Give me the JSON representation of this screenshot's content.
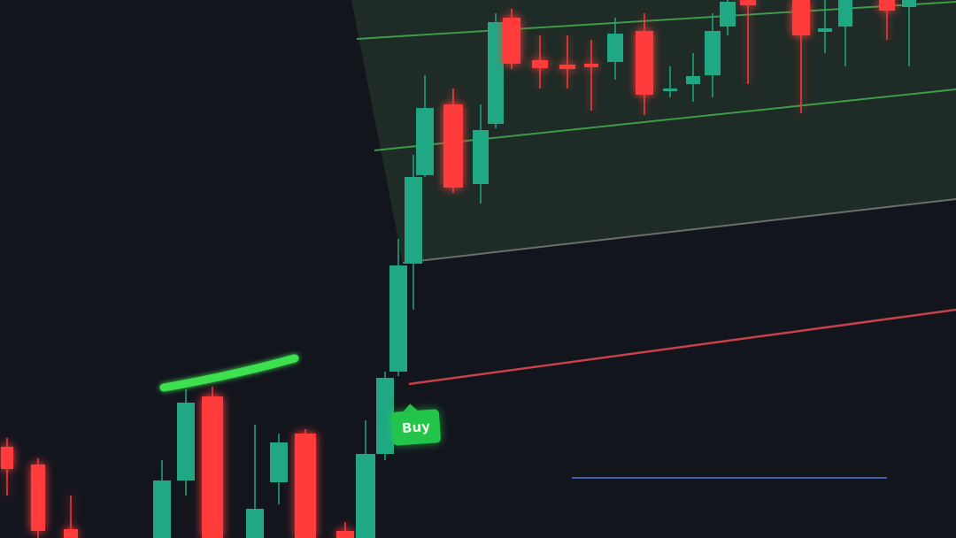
{
  "colors": {
    "background": "#13151d",
    "bullish": "#1fa883",
    "bearish": "#ff3b3b",
    "zone": "#1f2e28",
    "take_profit_line": "#3f9a4a",
    "stop_loss_line": "#c8404a",
    "blue_line": "#4d79d8",
    "buy_badge": "#22c54a"
  },
  "buy_badge": {
    "label": "Buy"
  }
}
